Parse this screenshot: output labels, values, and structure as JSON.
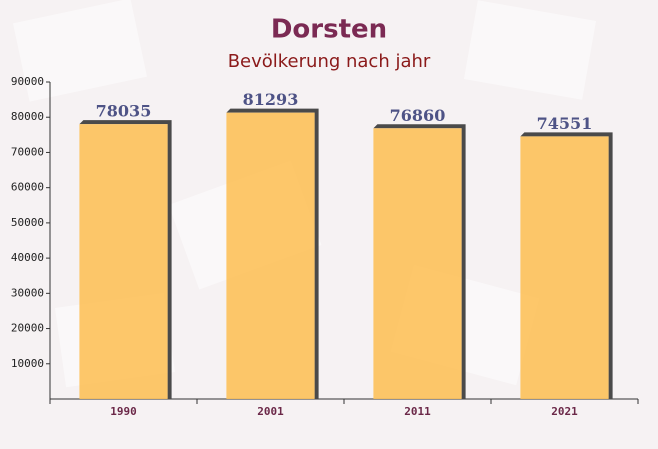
{
  "chart_data": {
    "type": "bar",
    "title": "Dorsten",
    "subtitle": "Bevölkerung nach jahr",
    "categories": [
      "1990",
      "2001",
      "2011",
      "2021"
    ],
    "values": [
      78035,
      81293,
      76860,
      74551
    ],
    "color": "#fdc15a",
    "ylim": [
      0,
      90000
    ],
    "yticks": [
      10000,
      20000,
      30000,
      40000,
      50000,
      60000,
      70000,
      80000,
      90000
    ]
  }
}
